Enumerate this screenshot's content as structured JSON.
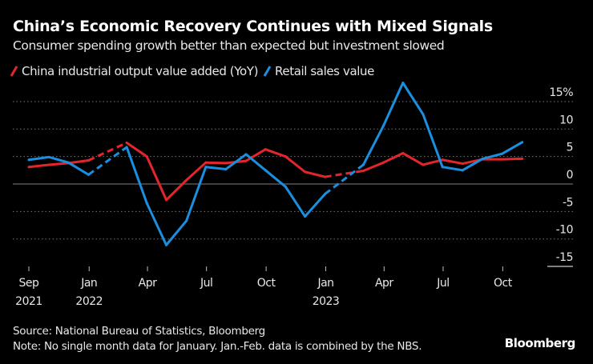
{
  "chart_data": {
    "type": "line",
    "title": "China’s Economic Recovery Continues with Mixed Signals",
    "subtitle": "Consumer spending growth better than expected but investment slowed",
    "ylim": [
      -15,
      15
    ],
    "y_ticks": [
      {
        "v": 15,
        "label": "15%"
      },
      {
        "v": 10,
        "label": "10"
      },
      {
        "v": 5,
        "label": "5"
      },
      {
        "v": 0,
        "label": "0"
      },
      {
        "v": -5,
        "label": "-5"
      },
      {
        "v": -10,
        "label": "-10"
      },
      {
        "v": -15,
        "label": "-15"
      }
    ],
    "y_axis_side": "right",
    "grid": true,
    "legend_placement": "top-left",
    "x_ticks": [
      {
        "date": "2021-09-30",
        "label": "Sep",
        "year": "2021"
      },
      {
        "date": "2022-01-01",
        "label": "Jan",
        "year": "2022"
      },
      {
        "date": "2022-04-01",
        "label": "Apr",
        "year": ""
      },
      {
        "date": "2022-07-01",
        "label": "Jul",
        "year": ""
      },
      {
        "date": "2022-10-01",
        "label": "Oct",
        "year": ""
      },
      {
        "date": "2023-01-01",
        "label": "Jan",
        "year": "2023"
      },
      {
        "date": "2023-04-01",
        "label": "Apr",
        "year": ""
      },
      {
        "date": "2023-07-01",
        "label": "Jul",
        "year": ""
      },
      {
        "date": "2023-10-01",
        "label": "Oct",
        "year": ""
      }
    ],
    "x": [
      "2021-09-30",
      "2021-10-31",
      "2021-11-30",
      "2021-12-31",
      "2022-02-28",
      "2022-03-31",
      "2022-04-30",
      "2022-05-31",
      "2022-06-30",
      "2022-07-31",
      "2022-08-31",
      "2022-09-30",
      "2022-10-31",
      "2022-11-30",
      "2022-12-31",
      "2023-02-28",
      "2023-03-31",
      "2023-04-30",
      "2023-05-31",
      "2023-06-30",
      "2023-07-31",
      "2023-08-31",
      "2023-09-30",
      "2023-10-31"
    ],
    "series": [
      {
        "name": "China industrial output value added (YoY)",
        "color": "#e3262b",
        "values": [
          3.1,
          3.5,
          3.8,
          4.3,
          7.5,
          5.0,
          -2.9,
          0.7,
          3.9,
          3.8,
          4.2,
          6.3,
          5.0,
          2.2,
          1.3,
          2.4,
          3.9,
          5.6,
          3.5,
          4.4,
          3.7,
          4.5,
          4.5,
          4.6
        ]
      },
      {
        "name": "Retail sales value",
        "color": "#1b8fdf",
        "values": [
          4.4,
          4.9,
          3.9,
          1.7,
          6.7,
          -3.5,
          -11.1,
          -6.7,
          3.1,
          2.7,
          5.4,
          2.5,
          -0.5,
          -5.9,
          -1.8,
          3.5,
          10.6,
          18.4,
          12.7,
          3.1,
          2.5,
          4.6,
          5.5,
          7.6
        ]
      }
    ],
    "dashed_segments_note_visible": false
  },
  "source": "Source: National Bureau of Statistics, Bloomberg",
  "note": "Note: No single month data for January. Jan.-Feb. data is combined by the NBS.",
  "logo": "Bloomberg"
}
